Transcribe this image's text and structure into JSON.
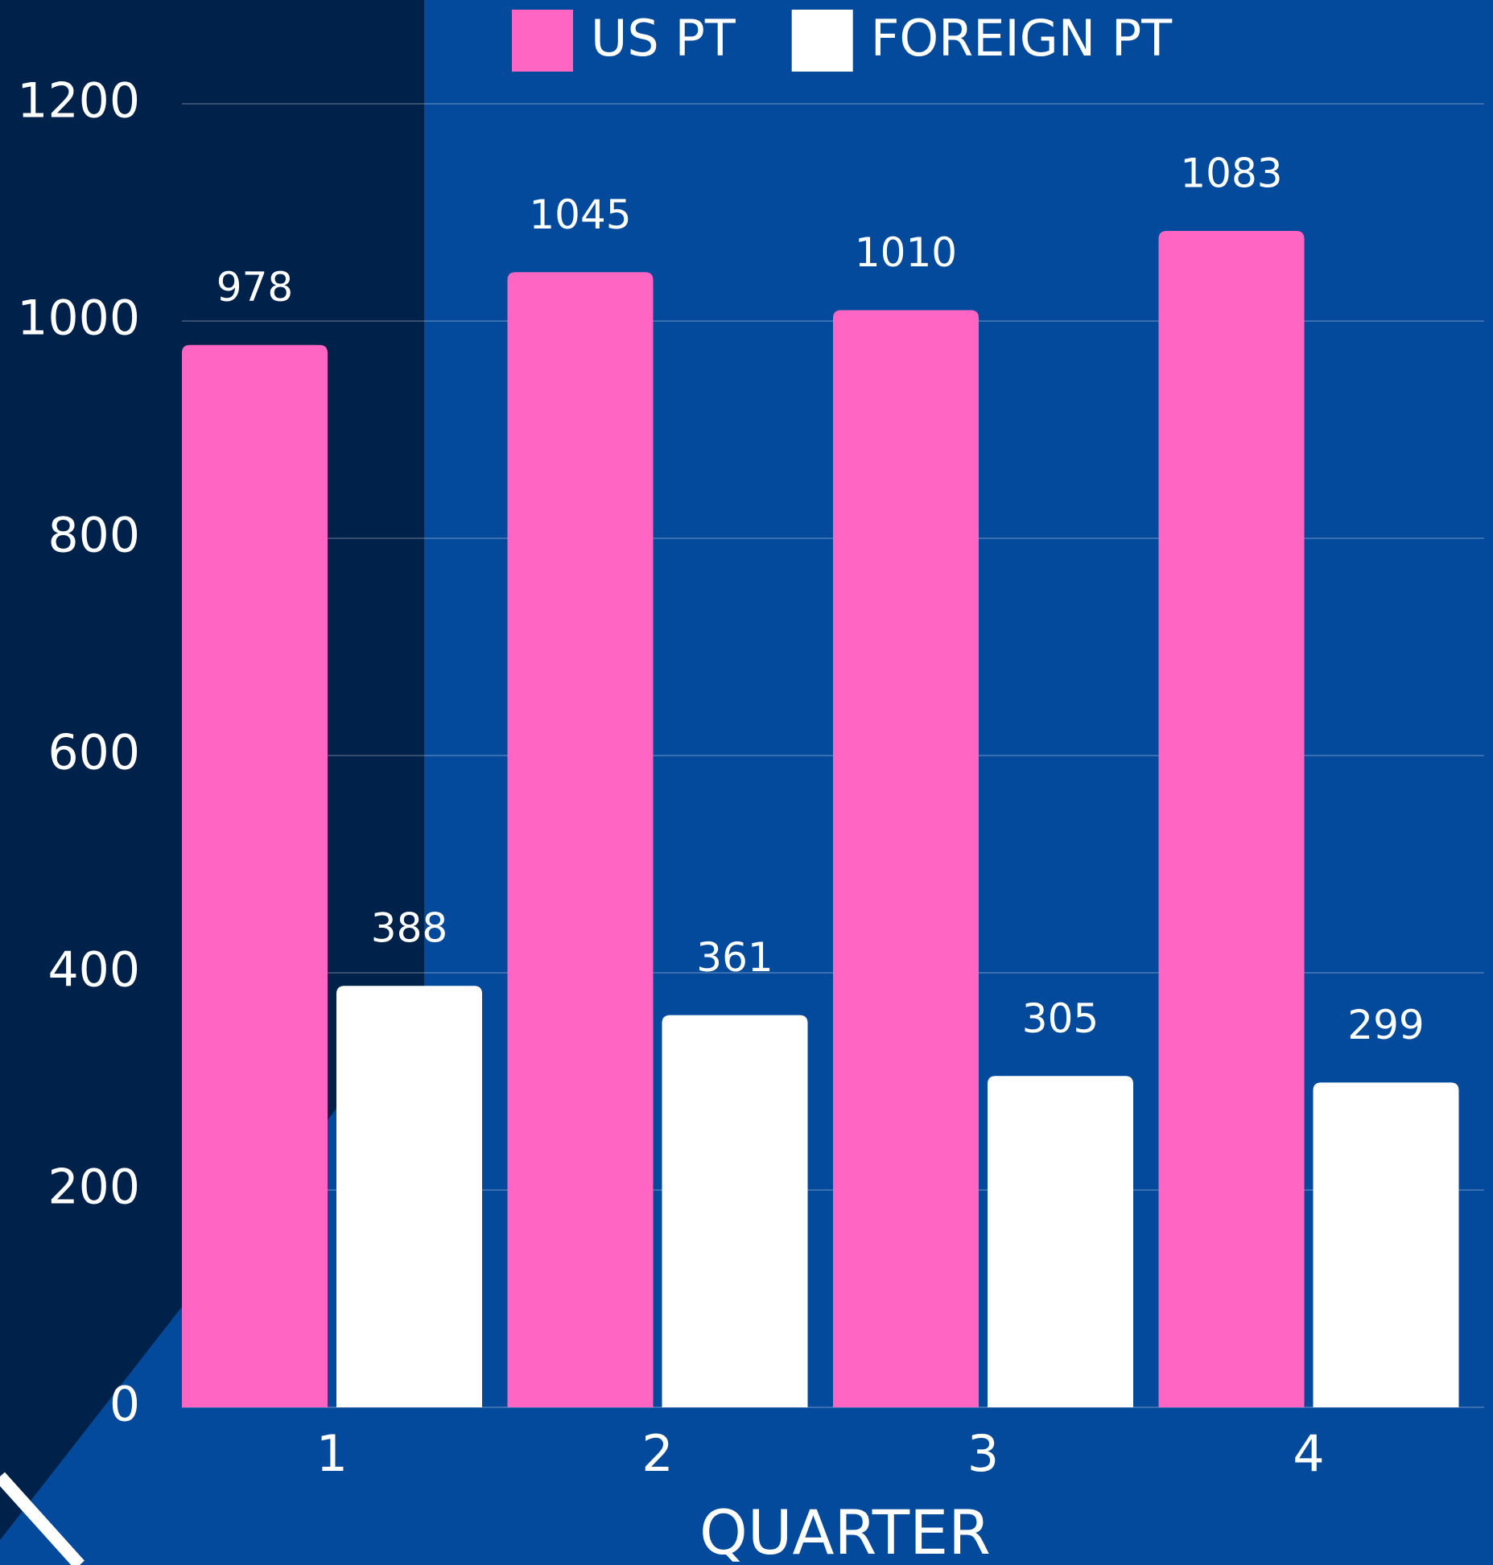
{
  "chart_data": {
    "type": "bar",
    "xlabel": "QUARTER",
    "categories": [
      "1",
      "2",
      "3",
      "4"
    ],
    "series": [
      {
        "name": "US PT",
        "color": "#ff66c4",
        "values": [
          978,
          1045,
          1010,
          1083
        ]
      },
      {
        "name": "FOREIGN PT",
        "color": "#ffffff",
        "values": [
          388,
          361,
          305,
          299
        ]
      }
    ],
    "ylim": [
      0,
      1200
    ],
    "yticks": [
      0,
      200,
      400,
      600,
      800,
      1000,
      1200
    ],
    "grid": true,
    "legend": "top"
  }
}
